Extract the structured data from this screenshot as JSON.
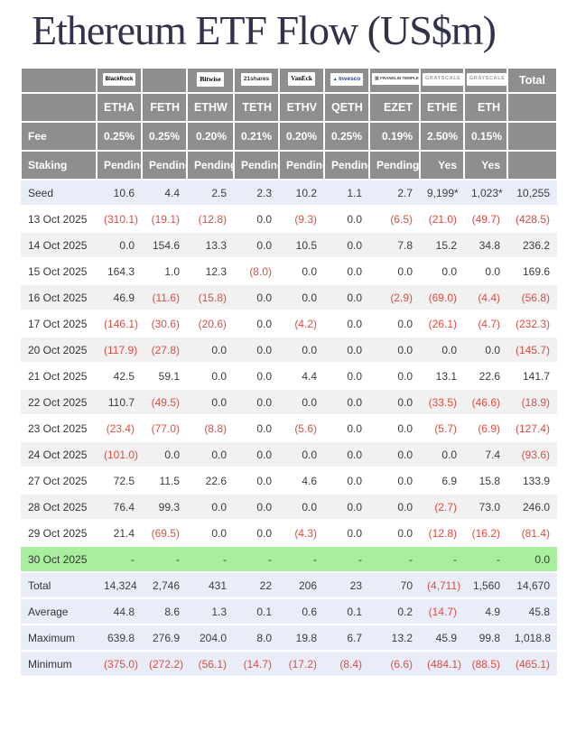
{
  "title": "Ethereum ETF Flow (US$m)",
  "chart_data": {
    "type": "table",
    "title": "Ethereum ETF Flow (US$m)",
    "total_label": "Total",
    "fee_label": "Fee",
    "staking_label": "Staking",
    "columns": [
      {
        "ticker": "ETHA",
        "issuer": "BlackRock",
        "fee": "0.25%",
        "staking": "Pending"
      },
      {
        "ticker": "FETH",
        "issuer": "",
        "fee": "0.25%",
        "staking": "Pending"
      },
      {
        "ticker": "ETHW",
        "issuer": "Bitwise",
        "fee": "0.20%",
        "staking": "Pending"
      },
      {
        "ticker": "TETH",
        "issuer": "21shares",
        "fee": "0.21%",
        "staking": "Pending"
      },
      {
        "ticker": "ETHV",
        "issuer": "VanEck",
        "fee": "0.20%",
        "staking": "Pending"
      },
      {
        "ticker": "QETH",
        "issuer": "Invesco",
        "fee": "0.25%",
        "staking": "Pending"
      },
      {
        "ticker": "EZET",
        "issuer": "Franklin Templeton",
        "fee": "0.19%",
        "staking": "Pending"
      },
      {
        "ticker": "ETHE",
        "issuer": "Grayscale",
        "fee": "2.50%",
        "staking": "Yes"
      },
      {
        "ticker": "ETH",
        "issuer": "Grayscale",
        "fee": "0.15%",
        "staking": "Yes"
      }
    ],
    "rows": [
      {
        "label": "Seed",
        "type": "seed",
        "values": [
          "10.6",
          "4.4",
          "2.5",
          "2.3",
          "10.2",
          "1.1",
          "2.7",
          "9,199*",
          "1,023*",
          "10,255"
        ]
      },
      {
        "label": "13 Oct 2025",
        "type": "flow",
        "values": [
          "(310.1)",
          "(19.1)",
          "(12.8)",
          "0.0",
          "(9.3)",
          "0.0",
          "(6.5)",
          "(21.0)",
          "(49.7)",
          "(428.5)"
        ]
      },
      {
        "label": "14 Oct 2025",
        "type": "flow",
        "values": [
          "0.0",
          "154.6",
          "13.3",
          "0.0",
          "10.5",
          "0.0",
          "7.8",
          "15.2",
          "34.8",
          "236.2"
        ]
      },
      {
        "label": "15 Oct 2025",
        "type": "flow",
        "values": [
          "164.3",
          "1.0",
          "12.3",
          "(8.0)",
          "0.0",
          "0.0",
          "0.0",
          "0.0",
          "0.0",
          "169.6"
        ]
      },
      {
        "label": "16 Oct 2025",
        "type": "flow",
        "values": [
          "46.9",
          "(11.6)",
          "(15.8)",
          "0.0",
          "0.0",
          "0.0",
          "(2.9)",
          "(69.0)",
          "(4.4)",
          "(56.8)"
        ]
      },
      {
        "label": "17 Oct 2025",
        "type": "flow",
        "values": [
          "(146.1)",
          "(30.6)",
          "(20.6)",
          "0.0",
          "(4.2)",
          "0.0",
          "0.0",
          "(26.1)",
          "(4.7)",
          "(232.3)"
        ]
      },
      {
        "label": "20 Oct 2025",
        "type": "flow",
        "values": [
          "(117.9)",
          "(27.8)",
          "0.0",
          "0.0",
          "0.0",
          "0.0",
          "0.0",
          "0.0",
          "0.0",
          "(145.7)"
        ]
      },
      {
        "label": "21 Oct 2025",
        "type": "flow",
        "values": [
          "42.5",
          "59.1",
          "0.0",
          "0.0",
          "4.4",
          "0.0",
          "0.0",
          "13.1",
          "22.6",
          "141.7"
        ]
      },
      {
        "label": "22 Oct 2025",
        "type": "flow",
        "values": [
          "110.7",
          "(49.5)",
          "0.0",
          "0.0",
          "0.0",
          "0.0",
          "0.0",
          "(33.5)",
          "(46.6)",
          "(18.9)"
        ]
      },
      {
        "label": "23 Oct 2025",
        "type": "flow",
        "values": [
          "(23.4)",
          "(77.0)",
          "(8.8)",
          "0.0",
          "(5.6)",
          "0.0",
          "0.0",
          "(5.7)",
          "(6.9)",
          "(127.4)"
        ]
      },
      {
        "label": "24 Oct 2025",
        "type": "flow",
        "values": [
          "(101.0)",
          "0.0",
          "0.0",
          "0.0",
          "0.0",
          "0.0",
          "0.0",
          "0.0",
          "7.4",
          "(93.6)"
        ]
      },
      {
        "label": "27 Oct 2025",
        "type": "flow",
        "values": [
          "72.5",
          "11.5",
          "22.6",
          "0.0",
          "4.6",
          "0.0",
          "0.0",
          "6.9",
          "15.8",
          "133.9"
        ]
      },
      {
        "label": "28 Oct 2025",
        "type": "flow",
        "values": [
          "76.4",
          "99.3",
          "0.0",
          "0.0",
          "0.0",
          "0.0",
          "0.0",
          "(2.7)",
          "73.0",
          "246.0"
        ]
      },
      {
        "label": "29 Oct 2025",
        "type": "flow",
        "values": [
          "21.4",
          "(69.5)",
          "0.0",
          "0.0",
          "(4.3)",
          "0.0",
          "0.0",
          "(12.8)",
          "(16.2)",
          "(81.4)"
        ]
      },
      {
        "label": "30 Oct 2025",
        "type": "today",
        "values": [
          "-",
          "-",
          "-",
          "-",
          "-",
          "-",
          "-",
          "-",
          "-",
          "0.0"
        ]
      },
      {
        "label": "Total",
        "type": "summary",
        "values": [
          "14,324",
          "2,746",
          "431",
          "22",
          "206",
          "23",
          "70",
          "(4,711)",
          "1,560",
          "14,670"
        ]
      },
      {
        "label": "Average",
        "type": "summary",
        "values": [
          "44.8",
          "8.6",
          "1.3",
          "0.1",
          "0.6",
          "0.1",
          "0.2",
          "(14.7)",
          "4.9",
          "45.8"
        ]
      },
      {
        "label": "Maximum",
        "type": "summary",
        "values": [
          "639.8",
          "276.9",
          "204.0",
          "8.0",
          "19.8",
          "6.7",
          "13.2",
          "45.9",
          "99.8",
          "1,018.8"
        ]
      },
      {
        "label": "Minimum",
        "type": "summary",
        "values": [
          "(375.0)",
          "(272.2)",
          "(56.1)",
          "(14.7)",
          "(17.2)",
          "(8.4)",
          "(6.6)",
          "(484.1)",
          "(88.5)",
          "(465.1)"
        ]
      }
    ],
    "colors": {
      "header_bg": "#8e8e8e",
      "accent_row_bg": "#e9edf8",
      "alt_row_bg": "#f1f1f2",
      "highlight_row_bg": "#a7ef9d",
      "negative_text": "#df4b41",
      "title_text": "#303349"
    }
  }
}
